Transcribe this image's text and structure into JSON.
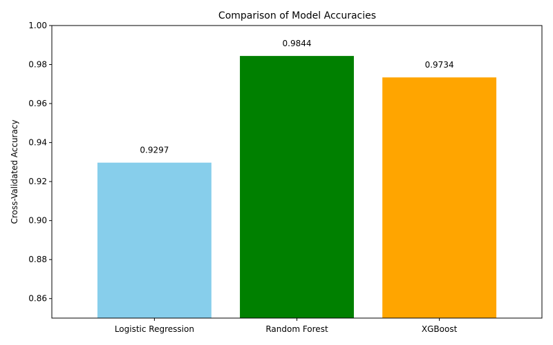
{
  "chart_data": {
    "type": "bar",
    "title": "Comparison of Model Accuracies",
    "xlabel": "",
    "ylabel": "Cross-Validated Accuracy",
    "categories": [
      "Logistic Regression",
      "Random Forest",
      "XGBoost"
    ],
    "values": [
      0.9297,
      0.9844,
      0.9734
    ],
    "value_labels": [
      "0.9297",
      "0.9844",
      "0.9734"
    ],
    "colors": [
      "#87CEEB",
      "#008000",
      "#FFA500"
    ],
    "ylim": [
      0.85,
      1.0
    ],
    "yticks": [
      0.86,
      0.88,
      0.9,
      0.92,
      0.94,
      0.96,
      0.98,
      1.0
    ],
    "ytick_labels": [
      "0.86",
      "0.88",
      "0.90",
      "0.92",
      "0.94",
      "0.96",
      "0.98",
      "1.00"
    ],
    "grid": false,
    "legend": "none"
  }
}
